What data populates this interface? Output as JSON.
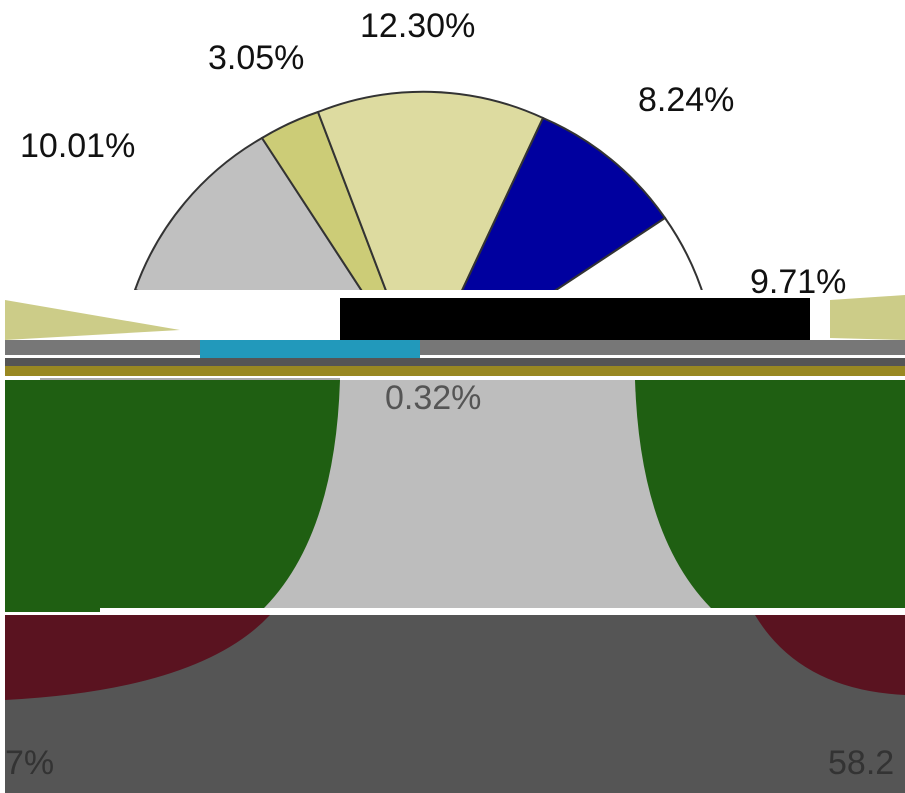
{
  "labels": [
    "12.30%",
    "3.05%",
    "8.24%",
    "10.01%",
    "9.71%",
    "0.32%",
    "7%",
    "58.2"
  ]
}
